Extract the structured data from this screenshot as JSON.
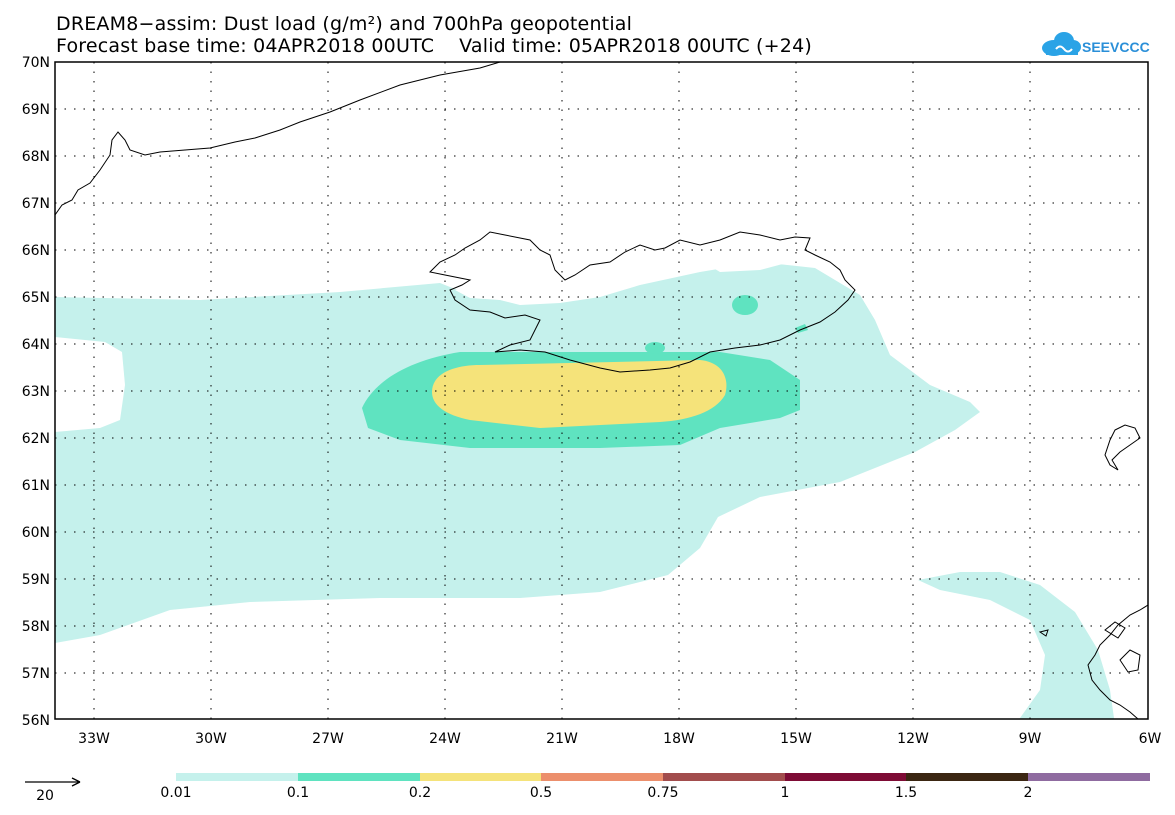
{
  "title_line1": "DREAM8−assim: Dust load (g/m²) and 700hPa geopotential",
  "title_line2": "Forecast base time: 04APR2018 00UTC    Valid time: 05APR2018 00UTC (+24)",
  "logo_text": "SEEVCCC",
  "logo_icon": "cloud-icon",
  "map": {
    "lon_range": [
      -34,
      -6
    ],
    "lat_range": [
      56,
      70
    ],
    "lat_labels": [
      "70N",
      "69N",
      "68N",
      "67N",
      "66N",
      "65N",
      "64N",
      "63N",
      "62N",
      "61N",
      "60N",
      "59N",
      "58N",
      "57N",
      "56N"
    ],
    "lon_labels": [
      "33W",
      "30W",
      "27W",
      "24W",
      "21W",
      "18W",
      "15W",
      "12W",
      "9W",
      "6W"
    ],
    "grid": "dotted"
  },
  "legend": {
    "vector_reference": "20",
    "colors": [
      "#c5f1ec",
      "#5fe3c0",
      "#f5e37a",
      "#ec8f6c",
      "#a24d4d",
      "#7e0b35",
      "#3b2612",
      "#8f6ba0"
    ],
    "labels": [
      "0.01",
      "0.1",
      "0.2",
      "0.5",
      "0.75",
      "1",
      "1.5",
      "2"
    ]
  }
}
